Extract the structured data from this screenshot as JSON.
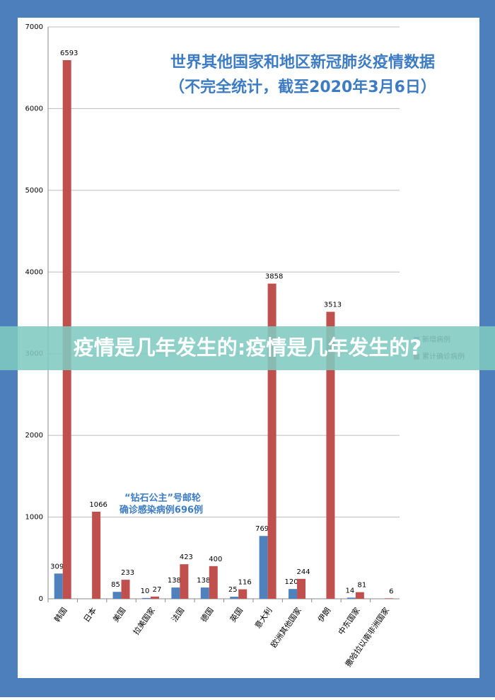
{
  "chart_data": {
    "type": "bar",
    "title": "世界其他国家和地区新冠肺炎疫情数据",
    "subtitle": "（不完全统计，截至2020年3月6日）",
    "annotation": "“钻石公主”号邮轮",
    "annotation_2": "确诊感染病例696例",
    "categories": [
      "韩国",
      "日本",
      "美国",
      "拉美国家",
      "法国",
      "德国",
      "英国",
      "意大利",
      "欧洲其他国家",
      "伊朗",
      "中东国家",
      "撒哈拉以南非洲国家"
    ],
    "series": [
      {
        "name": "新增病例",
        "color": "#4f81bd",
        "values": [
          309,
          null,
          85,
          10,
          138,
          138,
          25,
          769,
          120,
          null,
          14,
          null
        ]
      },
      {
        "name": "累计确诊病例",
        "color": "#c0504d",
        "values": [
          6593,
          1066,
          233,
          27,
          423,
          400,
          116,
          3858,
          244,
          3513,
          81,
          6
        ]
      }
    ],
    "ylim": [
      0,
      7000
    ],
    "yticks": [
      0,
      1000,
      2000,
      3000,
      4000,
      5000,
      6000,
      7000
    ],
    "grid": true
  },
  "banner": "疫情是几年发生的:疫情是几年发生的?"
}
